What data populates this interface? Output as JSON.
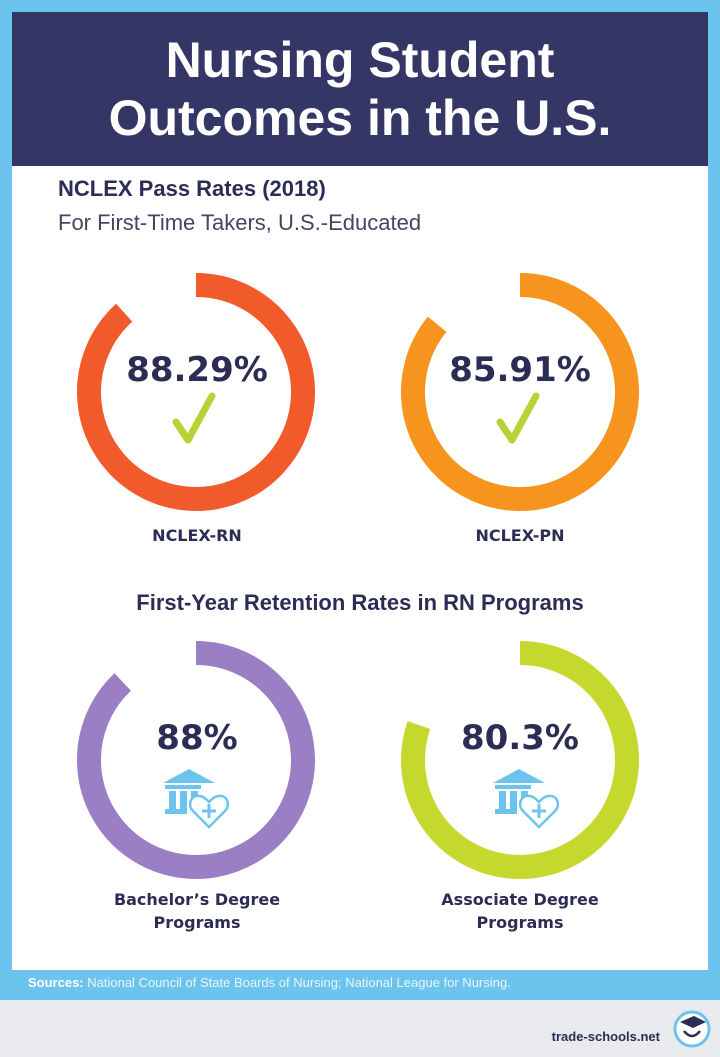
{
  "header": {
    "title_line1": "Nursing Student",
    "title_line2": "Outcomes in the U.S."
  },
  "section1": {
    "title": "NCLEX Pass Rates (2018)",
    "subtitle": "For First-Time Takers, U.S.-Educated"
  },
  "section2": {
    "title": "First-Year Retention Rates in RN Programs"
  },
  "chart_data": [
    {
      "type": "pie",
      "title": "NCLEX Pass Rates (2018)",
      "subtitle": "For First-Time Takers, U.S.-Educated",
      "items": [
        {
          "label": "NCLEX-RN",
          "value": 88.29,
          "value_label": "88.29%",
          "color": "#f15a2b",
          "icon": "checkmark-icon"
        },
        {
          "label": "NCLEX-PN",
          "value": 85.91,
          "value_label": "85.91%",
          "color": "#f7941d",
          "icon": "checkmark-icon"
        }
      ]
    },
    {
      "type": "pie",
      "title": "First-Year Retention Rates in RN Programs",
      "items": [
        {
          "label_line1": "Bachelor’s Degree",
          "label_line2": "Programs",
          "value": 88,
          "value_label": "88%",
          "color": "#9b7fc4",
          "icon": "nursing-school-icon"
        },
        {
          "label_line1": "Associate Degree",
          "label_line2": "Programs",
          "value": 80.3,
          "value_label": "80.3%",
          "color": "#c5d82e",
          "icon": "nursing-school-icon"
        }
      ]
    }
  ],
  "colors": {
    "frame": "#6cc4ee",
    "header": "#343766",
    "text": "#2b2d55",
    "check": "#b5d334",
    "icon": "#6cc4ee"
  },
  "footer": {
    "sources_label": "Sources:",
    "sources_text": " National Council of State Boards of Nursing; National League for Nursing.",
    "brand": "trade-schools.net"
  }
}
